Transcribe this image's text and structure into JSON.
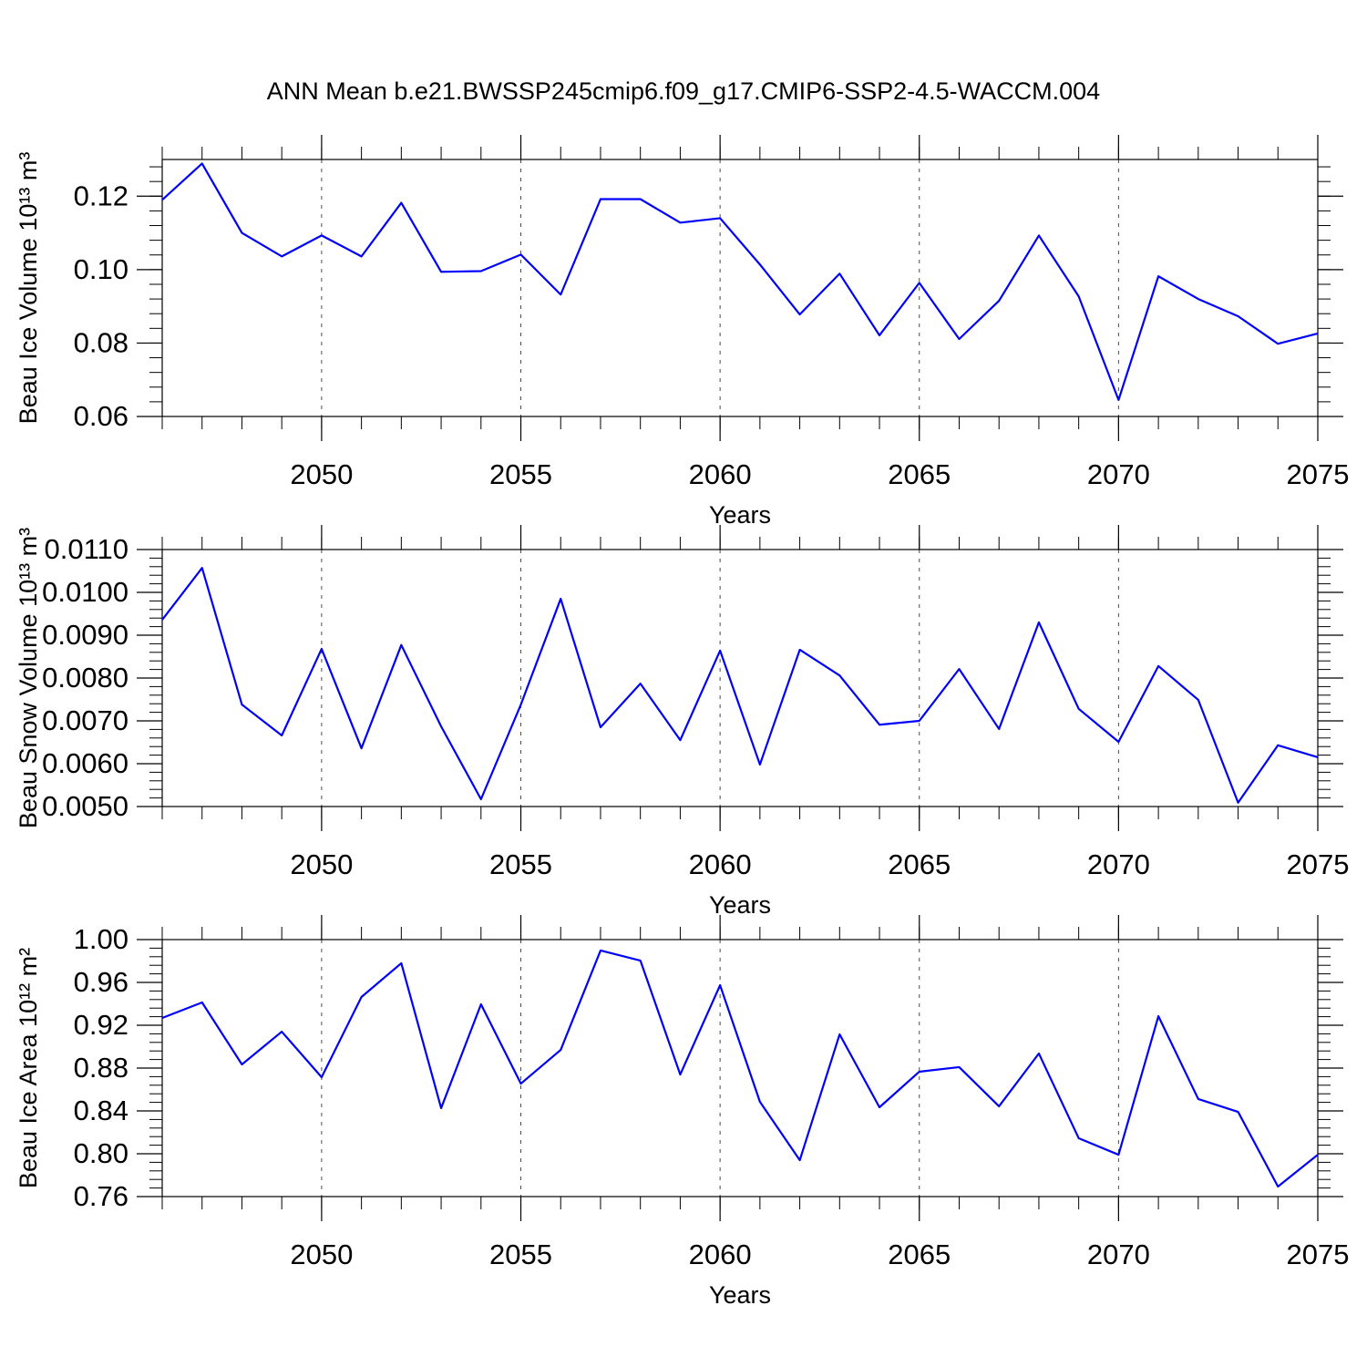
{
  "chart_data": [
    {
      "type": "line",
      "title": "ANN Mean b.e21.BWSSP245cmip6.f09_g17.CMIP6-SSP2-4.5-WACCM.004",
      "ylabel": "Beau Ice Volume 10¹³ m³",
      "xlabel": "Years",
      "color": "#0000ff",
      "grid": true,
      "x": [
        2046,
        2047,
        2048,
        2049,
        2050,
        2051,
        2052,
        2053,
        2054,
        2055,
        2056,
        2057,
        2058,
        2059,
        2060,
        2061,
        2062,
        2063,
        2064,
        2065,
        2066,
        2067,
        2068,
        2069,
        2070,
        2071,
        2072,
        2073,
        2074,
        2075
      ],
      "values": [
        0.119,
        0.1289,
        0.11,
        0.1036,
        0.1093,
        0.1036,
        0.1182,
        0.0994,
        0.0996,
        0.1041,
        0.0932,
        0.1192,
        0.1192,
        0.1128,
        0.114,
        0.1014,
        0.0878,
        0.0989,
        0.0821,
        0.0964,
        0.0811,
        0.0915,
        0.1093,
        0.0927,
        0.0645,
        0.0982,
        0.092,
        0.0873,
        0.0798,
        0.0826
      ],
      "xlim": [
        2046,
        2075
      ],
      "xticks": [
        2050,
        2055,
        2060,
        2065,
        2070,
        2075
      ],
      "ylim": [
        0.06,
        0.13
      ],
      "yticks": [
        0.06,
        0.08,
        {
          "value": 0.1,
          "label": "0.10"
        },
        0.12
      ]
    },
    {
      "type": "line",
      "ylabel": "Beau Snow Volume 10¹³ m³",
      "xlabel": "Years",
      "color": "#0000ff",
      "grid": true,
      "x": [
        2046,
        2047,
        2048,
        2049,
        2050,
        2051,
        2052,
        2053,
        2054,
        2055,
        2056,
        2057,
        2058,
        2059,
        2060,
        2061,
        2062,
        2063,
        2064,
        2065,
        2066,
        2067,
        2068,
        2069,
        2070,
        2071,
        2072,
        2073,
        2074,
        2075
      ],
      "values": [
        0.00936,
        0.01057,
        0.00738,
        0.00666,
        0.00868,
        0.00636,
        0.00877,
        0.00687,
        0.00517,
        0.00738,
        0.00985,
        0.00685,
        0.00787,
        0.00655,
        0.00864,
        0.00598,
        0.00866,
        0.00806,
        0.00691,
        0.007,
        0.00821,
        0.00681,
        0.0093,
        0.00728,
        0.00651,
        0.00828,
        0.00749,
        0.00509,
        0.00643,
        0.00615
      ],
      "xlim": [
        2046,
        2075
      ],
      "xticks": [
        2050,
        2055,
        2060,
        2065,
        2070,
        2075
      ],
      "ylim": [
        0.005,
        0.011
      ],
      "yticks": [
        {
          "value": 0.005,
          "label": "0.0050"
        },
        {
          "value": 0.006,
          "label": "0.0060"
        },
        {
          "value": 0.007,
          "label": "0.0070"
        },
        {
          "value": 0.008,
          "label": "0.0080"
        },
        {
          "value": 0.009,
          "label": "0.0090"
        },
        {
          "value": 0.01,
          "label": "0.0100"
        },
        {
          "value": 0.011,
          "label": "0.0110"
        }
      ]
    },
    {
      "type": "line",
      "ylabel": "Beau Ice Area 10¹² m²",
      "xlabel": "Years",
      "color": "#0000ff",
      "grid": true,
      "x": [
        2046,
        2047,
        2048,
        2049,
        2050,
        2051,
        2052,
        2053,
        2054,
        2055,
        2056,
        2057,
        2058,
        2059,
        2060,
        2061,
        2062,
        2063,
        2064,
        2065,
        2066,
        2067,
        2068,
        2069,
        2070,
        2071,
        2072,
        2073,
        2074,
        2075
      ],
      "values": [
        0.9268,
        0.9413,
        0.8834,
        0.914,
        0.8715,
        0.9464,
        0.9779,
        0.8426,
        0.9396,
        0.8655,
        0.897,
        0.9898,
        0.9804,
        0.874,
        0.9574,
        0.8485,
        0.794,
        0.9115,
        0.8434,
        0.8766,
        0.8809,
        0.8443,
        0.8936,
        0.8145,
        0.7991,
        0.9285,
        0.8511,
        0.8391,
        0.7694,
        0.7991
      ],
      "xlim": [
        2046,
        2075
      ],
      "xticks": [
        2050,
        2055,
        2060,
        2065,
        2070,
        2075
      ],
      "ylim": [
        0.76,
        1.0
      ],
      "yticks": [
        0.76,
        {
          "value": 0.8,
          "label": "0.80"
        },
        0.84,
        0.88,
        0.92,
        0.96,
        {
          "value": 1.0,
          "label": "1.00"
        }
      ]
    }
  ]
}
